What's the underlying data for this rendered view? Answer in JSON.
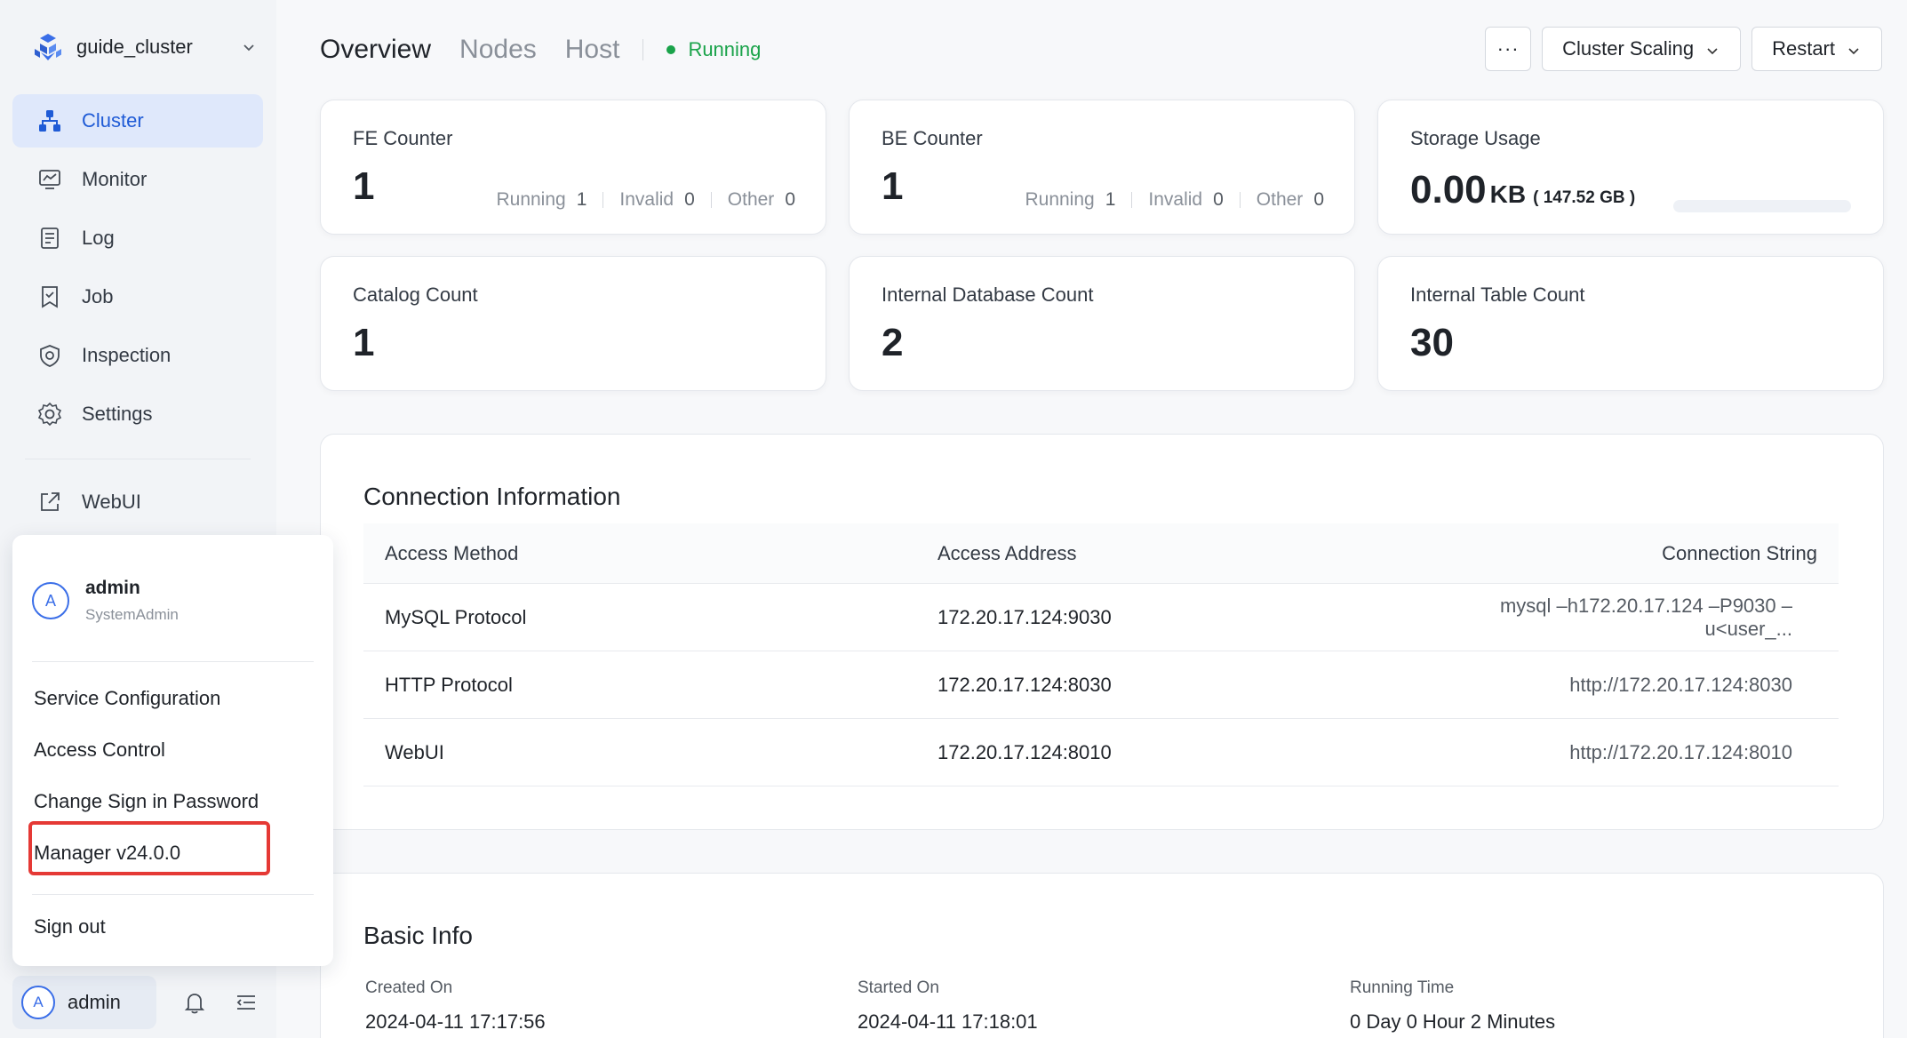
{
  "cluster": {
    "name": "guide_cluster"
  },
  "sidebar": {
    "items": [
      {
        "label": "Cluster",
        "icon": "cluster-icon",
        "active": true
      },
      {
        "label": "Monitor",
        "icon": "monitor-icon"
      },
      {
        "label": "Log",
        "icon": "log-icon"
      },
      {
        "label": "Job",
        "icon": "job-icon"
      },
      {
        "label": "Inspection",
        "icon": "inspection-icon"
      },
      {
        "label": "Settings",
        "icon": "gear-icon"
      }
    ],
    "webui": {
      "label": "WebUI",
      "icon": "external-link-icon"
    }
  },
  "user_menu": {
    "avatar_letter": "A",
    "name": "admin",
    "role": "SystemAdmin",
    "items": [
      "Service Configuration",
      "Access Control",
      "Change Sign in Password",
      "Manager v24.0.0"
    ],
    "sign_out": "Sign out"
  },
  "bottom_bar": {
    "avatar_letter": "A",
    "user": "admin"
  },
  "header": {
    "tabs": [
      "Overview",
      "Nodes",
      "Host"
    ],
    "status": "Running",
    "status_color": "#1aa34a",
    "more_label": "···",
    "scaling_label": "Cluster Scaling",
    "restart_label": "Restart"
  },
  "cards": {
    "fe": {
      "title": "FE Counter",
      "value": "1",
      "running_label": "Running",
      "running": "1",
      "invalid_label": "Invalid",
      "invalid": "0",
      "other_label": "Other",
      "other": "0"
    },
    "be": {
      "title": "BE Counter",
      "value": "1",
      "running_label": "Running",
      "running": "1",
      "invalid_label": "Invalid",
      "invalid": "0",
      "other_label": "Other",
      "other": "0"
    },
    "storage": {
      "title": "Storage Usage",
      "value": "0.00",
      "unit": "KB",
      "total": "( 147.52 GB )",
      "usage_fraction": 0.0
    },
    "catalog": {
      "title": "Catalog Count",
      "value": "1"
    },
    "database": {
      "title": "Internal Database Count",
      "value": "2"
    },
    "table": {
      "title": "Internal Table Count",
      "value": "30"
    }
  },
  "connection": {
    "title": "Connection Information",
    "headers": [
      "Access Method",
      "Access Address",
      "Connection String"
    ],
    "rows": [
      {
        "method": "MySQL Protocol",
        "address": "172.20.17.124:9030",
        "conn": "mysql –h172.20.17.124 –P9030 –u<user_..."
      },
      {
        "method": "HTTP Protocol",
        "address": "172.20.17.124:8030",
        "conn": "http://172.20.17.124:8030"
      },
      {
        "method": "WebUI",
        "address": "172.20.17.124:8010",
        "conn": "http://172.20.17.124:8010"
      }
    ]
  },
  "basic_info": {
    "title": "Basic Info",
    "created_label": "Created On",
    "created": "2024-04-11 17:17:56",
    "started_label": "Started On",
    "started": "2024-04-11 17:18:01",
    "running_label": "Running Time",
    "running": "0 Day 0 Hour 2 Minutes"
  },
  "accent_color": "#3a6ee8",
  "highlight_color": "#e53935"
}
